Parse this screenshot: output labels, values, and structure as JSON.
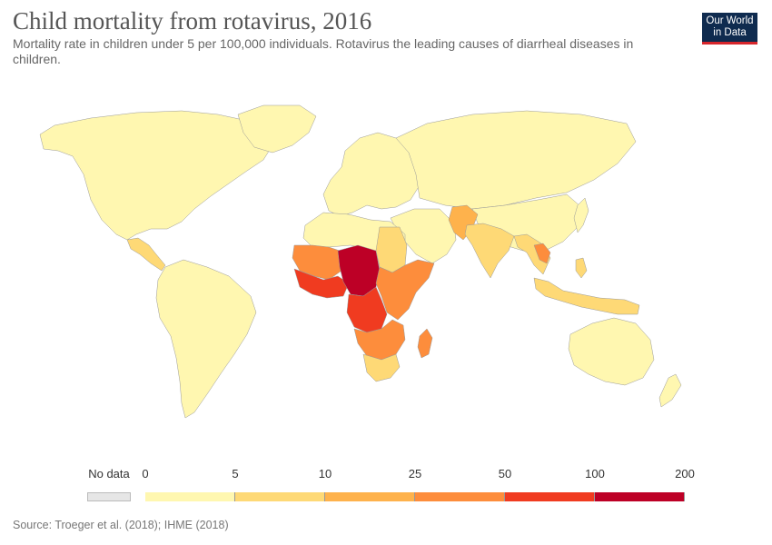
{
  "header": {
    "title": "Child mortality from rotavirus, 2016",
    "subtitle": "Mortality rate in children under 5 per 100,000 individuals. Rotavirus the leading causes of diarrheal diseases in children.",
    "logo_line1": "Our World",
    "logo_line2": "in Data"
  },
  "legend": {
    "no_data_label": "No data",
    "no_data_color": "#e6e6e6",
    "bins": [
      {
        "from": "0",
        "to": "5",
        "color": "#fff7b0"
      },
      {
        "from": "5",
        "to": "10",
        "color": "#fed976"
      },
      {
        "from": "10",
        "to": "25",
        "color": "#feb24c"
      },
      {
        "from": "25",
        "to": "50",
        "color": "#fd8d3c"
      },
      {
        "from": "50",
        "to": "100",
        "color": "#f03b20"
      },
      {
        "from": "100",
        "to": "200",
        "color": "#bd0026"
      }
    ],
    "tick_labels": [
      "0",
      "5",
      "10",
      "25",
      "50",
      "100",
      "200"
    ]
  },
  "map": {
    "type": "choropleth",
    "regions": [
      {
        "region": "North America",
        "bin": "0-5"
      },
      {
        "region": "Greenland",
        "bin": "0-5"
      },
      {
        "region": "Central America",
        "bin": "5-10"
      },
      {
        "region": "South America",
        "bin": "0-5"
      },
      {
        "region": "Europe",
        "bin": "0-5"
      },
      {
        "region": "Russia",
        "bin": "0-5"
      },
      {
        "region": "North Africa",
        "bin": "0-5"
      },
      {
        "region": "Sahel west",
        "bin": "25-50"
      },
      {
        "region": "Niger / Chad / Nigeria / CAR",
        "bin": "100-200"
      },
      {
        "region": "West Africa coast",
        "bin": "50-100"
      },
      {
        "region": "DR Congo / Central Africa",
        "bin": "50-100"
      },
      {
        "region": "Horn & East Africa",
        "bin": "25-50"
      },
      {
        "region": "Southern Africa",
        "bin": "10-25"
      },
      {
        "region": "South Africa",
        "bin": "5-10"
      },
      {
        "region": "Madagascar",
        "bin": "25-50"
      },
      {
        "region": "Middle East",
        "bin": "0-5"
      },
      {
        "region": "Afghanistan / Pakistan",
        "bin": "10-25"
      },
      {
        "region": "India",
        "bin": "5-10"
      },
      {
        "region": "China",
        "bin": "0-5"
      },
      {
        "region": "Laos / Cambodia",
        "bin": "25-50"
      },
      {
        "region": "Southeast Asia",
        "bin": "5-10"
      },
      {
        "region": "Indonesia / Papua",
        "bin": "5-10"
      },
      {
        "region": "Australia",
        "bin": "0-5"
      },
      {
        "region": "New Zealand",
        "bin": "0-5"
      }
    ]
  },
  "source": "Source: Troeger et al. (2018); IHME (2018)"
}
